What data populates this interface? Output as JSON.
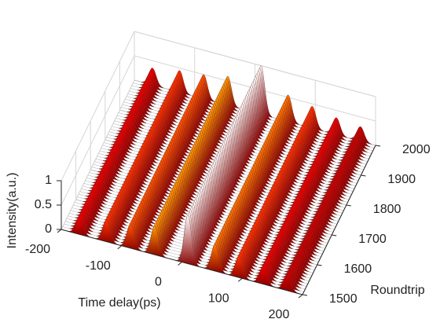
{
  "chart_data": {
    "type": "waterfall",
    "xlabel": "Time delay(ps)",
    "ylabel": "Roundtrip",
    "zlabel": "Intensity(a.u.)",
    "x": [
      -170,
      -125,
      -85,
      -45,
      10,
      55,
      95,
      135,
      175
    ],
    "values": [
      0.35,
      0.45,
      0.5,
      0.6,
      1.0,
      0.55,
      0.45,
      0.35,
      0.3
    ],
    "xlim": [
      -200,
      200
    ],
    "xticks": [
      -200,
      -100,
      0,
      100,
      200
    ],
    "ylim": [
      1500,
      2000
    ],
    "yticks": [
      1500,
      1600,
      1700,
      1800,
      1900,
      2000
    ],
    "zlim": [
      0,
      1
    ],
    "zticks": [
      0,
      0.5,
      1
    ],
    "grid": true,
    "colormap": "hot"
  }
}
